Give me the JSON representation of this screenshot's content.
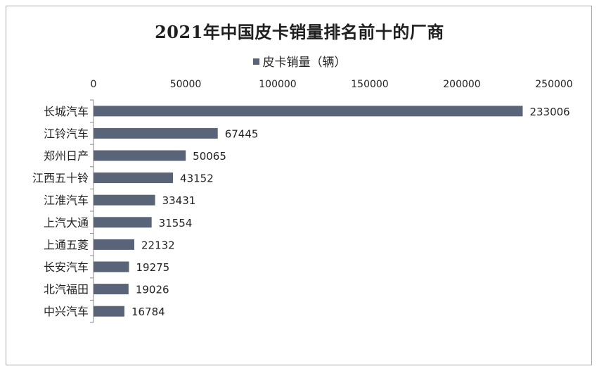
{
  "chart_data": {
    "type": "bar",
    "orientation": "horizontal",
    "title": "2021年中国皮卡销量排名前十的厂商",
    "categories": [
      "长城汽车",
      "江铃汽车",
      "郑州日产",
      "江西五十铃",
      "江淮汽车",
      "上汽大通",
      "上通五菱",
      "长安汽车",
      "北汽福田",
      "中兴汽车"
    ],
    "series": [
      {
        "name": "皮卡销量（辆）",
        "values": [
          233006,
          67445,
          50065,
          43152,
          33431,
          31554,
          22132,
          19275,
          19026,
          16784
        ],
        "color": "#5a6478"
      }
    ],
    "x_axis": {
      "position": "top",
      "ticks": [
        "0",
        "50000",
        "100000",
        "150000",
        "200000",
        "250000"
      ],
      "range": [
        0,
        250000
      ]
    },
    "legend_position": "top",
    "grid": false
  }
}
